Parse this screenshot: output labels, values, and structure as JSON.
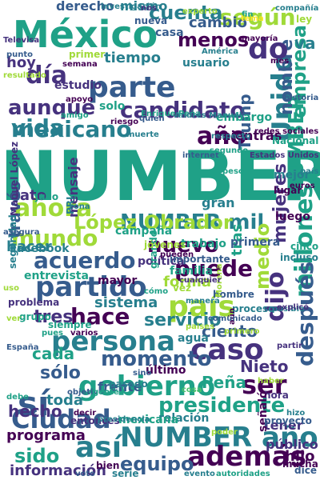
{
  "colors": {
    "background": "#ffffff",
    "palette": [
      "#440154",
      "#46327e",
      "#365c8d",
      "#277f8e",
      "#1fa187",
      "#4ac16d",
      "#a0da39",
      "#fde725"
    ]
  },
  "words": [
    "NUMBER",
    "México",
    "NUMBER mil",
    "López Obrador",
    "partido",
    "persona",
    "gobierno",
    "país",
    "presidente",
    "Ciudad",
    "NUMBER año",
    "parte",
    "candidato",
    "mexicano",
    "día",
    "año",
    "caso",
    "acuerdo",
    "hace",
    "momento",
    "puede",
    "ahora",
    "mundo",
    "Unido",
    "según",
    "cuenta",
    "millones",
    "dijo",
    "después",
    "medio",
    "ser",
    "sí",
    "así",
    "además",
    "equipo",
    "vida",
    "aunque",
    "menos",
    "nuevo",
    "tres",
    "sólo",
    "mujeres",
    "empresa",
    "servicio",
    "NUMBER",
    "Trump",
    "nombre",
    "información",
    "sido",
    "programa",
    "hecho",
    "cada",
    "sistema",
    "Peña",
    "Nieto",
    "ciento",
    "toda",
    "forma",
    "tiempo",
    "cambio",
    "mismo",
    "derecho",
    "dato",
    "hoy",
    "hacer",
    "través",
    "va",
    "do",
    "tras",
    "mientras",
    "gran",
    "embargo",
    "hijo",
    "frente",
    "último",
    "tener",
    "público",
    "relación",
    "mexicana",
    "campaña",
    "política",
    "trabajo",
    "primera",
    "mayor",
    "agua",
    "entrevista",
    "grupo",
    "entonces",
    "siempre",
    "familia",
    "mensaje",
    "usuario",
    "solo",
    "casa",
    "estudio",
    "nueva",
    "investigación",
    "Facebook",
    "Nacional",
    "ley",
    "dice",
    "hora",
    "serie",
    "bien",
    "mucha",
    "señaló",
    "proyecto",
    "hizo",
    "problema",
    "PRI",
    "julio",
    "luego",
    "mejor",
    "lugar",
    "cinco",
    "incluso",
    "zona",
    "primer",
    "punto",
    "resultado",
    "semana",
    "Enrique Peña",
    "Andrés Manuel",
    "América",
    "mayoría",
    "compañía",
    "historia",
    "experto",
    "apoyo",
    "fin",
    "nos",
    "quien",
    "riesgo",
    "muerte",
    "internet",
    "respecto",
    "Manuel López",
    "grande",
    "jóvenes",
    "pueden",
    "importante",
    "cómo",
    "vez",
    "hombre",
    "proceso",
    "Morena",
    "posible",
    "uso",
    "seguridad",
    "asegura",
    "varios",
    "pues",
    "ver",
    "explicó",
    "pasado",
    "haber",
    "sino",
    "decir",
    "objetivo",
    "presidencia",
    "gente",
    "España",
    "aún",
    "evento",
    "Televisa",
    "autoridades",
    "primero",
    "partir",
    "segundo",
    "Estados Unidos",
    "redes sociales",
    "país",
    "amigo",
    "peso",
    "euros",
    "cualquier",
    "comunicado",
    "manera",
    "voto",
    "paises",
    "debe",
    "cosa",
    "poder",
    "tema",
    "mes"
  ]
}
